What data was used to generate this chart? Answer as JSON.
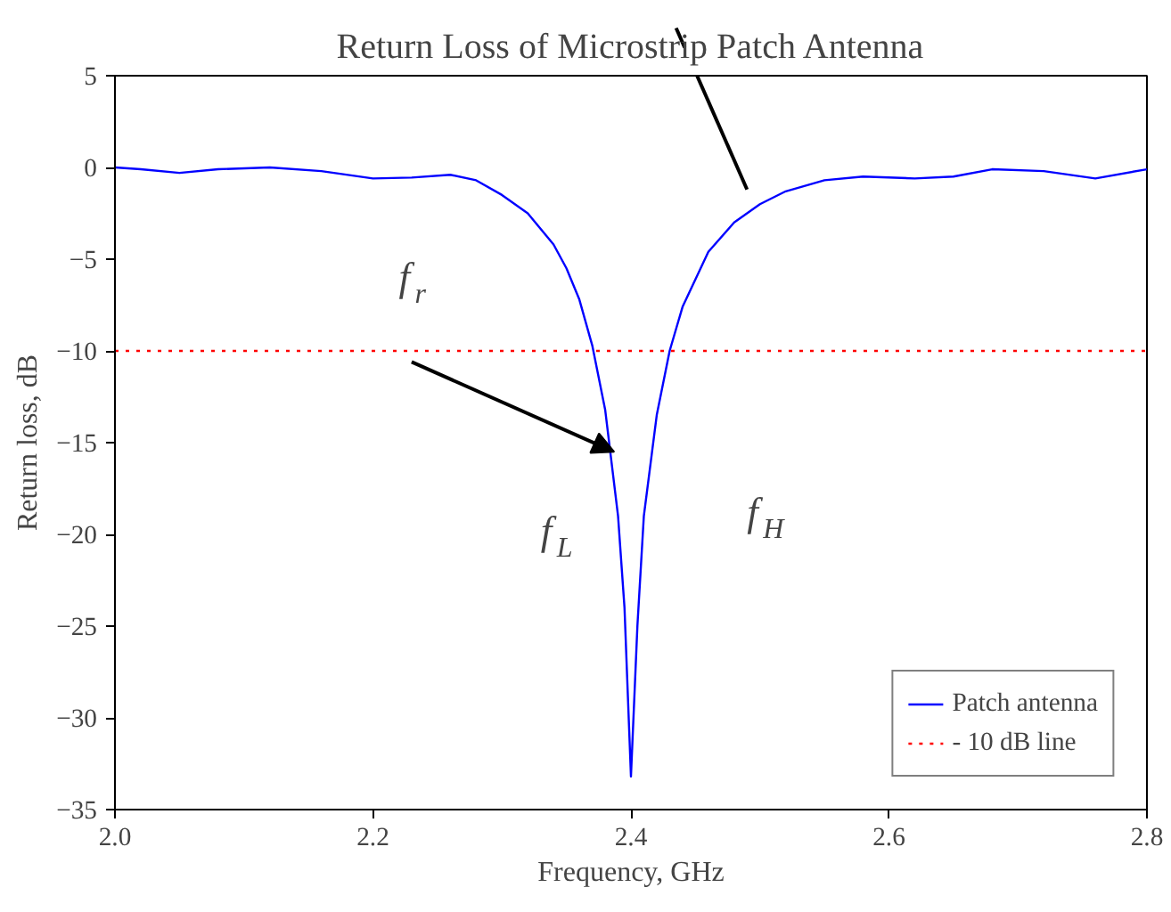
{
  "chart_data": {
    "type": "line",
    "title": "Return Loss of Microstrip Patch Antenna",
    "xlabel": "Frequency, GHz",
    "ylabel": "Return loss, dB",
    "x": [
      2.0,
      2.02,
      2.05,
      2.08,
      2.12,
      2.16,
      2.2,
      2.23,
      2.26,
      2.28,
      2.3,
      2.32,
      2.34,
      2.35,
      2.36,
      2.37,
      2.38,
      2.39,
      2.395,
      2.4,
      2.405,
      2.41,
      2.42,
      2.43,
      2.44,
      2.46,
      2.48,
      2.5,
      2.52,
      2.55,
      2.58,
      2.62,
      2.65,
      2.68,
      2.72,
      2.76,
      2.8
    ],
    "series": [
      {
        "name": "Patch antenna",
        "color": "#0000ff",
        "values": [
          0,
          -0.1,
          -0.3,
          -0.1,
          0,
          -0.2,
          -0.6,
          -0.55,
          -0.4,
          -0.7,
          -1.5,
          -2.5,
          -4.2,
          -5.5,
          -7.2,
          -9.7,
          -13.2,
          -19,
          -24,
          -33.2,
          -25,
          -19,
          -13.5,
          -10,
          -7.6,
          -4.6,
          -3.0,
          -2.0,
          -1.3,
          -0.7,
          -0.5,
          -0.6,
          -0.5,
          -0.1,
          -0.2,
          -0.6,
          -0.1
        ]
      }
    ],
    "ref_lines": [
      {
        "axis": "y",
        "value": -10,
        "label": "- 10 dB line",
        "color": "#ff0000",
        "line_style": "dotted"
      }
    ],
    "annotations": [
      "f$_{r}$",
      "f$_{L}$",
      "f$_{H}$"
    ],
    "xlim": [
      2.0,
      2.8
    ],
    "ylim": [
      -35,
      5
    ],
    "xticks": [
      {
        "value": 2.0,
        "label": "2.0"
      },
      {
        "value": 2.2,
        "label": "2.2"
      },
      {
        "value": 2.4,
        "label": "2.4"
      },
      {
        "value": 2.6,
        "label": "2.6"
      },
      {
        "value": 2.8,
        "label": "2.8"
      }
    ],
    "yticks": [
      -35,
      -30,
      -25,
      -20,
      -15,
      -10,
      -5,
      0,
      5
    ],
    "grid": false,
    "legend": "bottom right",
    "marker": "none",
    "line_style": "solid"
  }
}
